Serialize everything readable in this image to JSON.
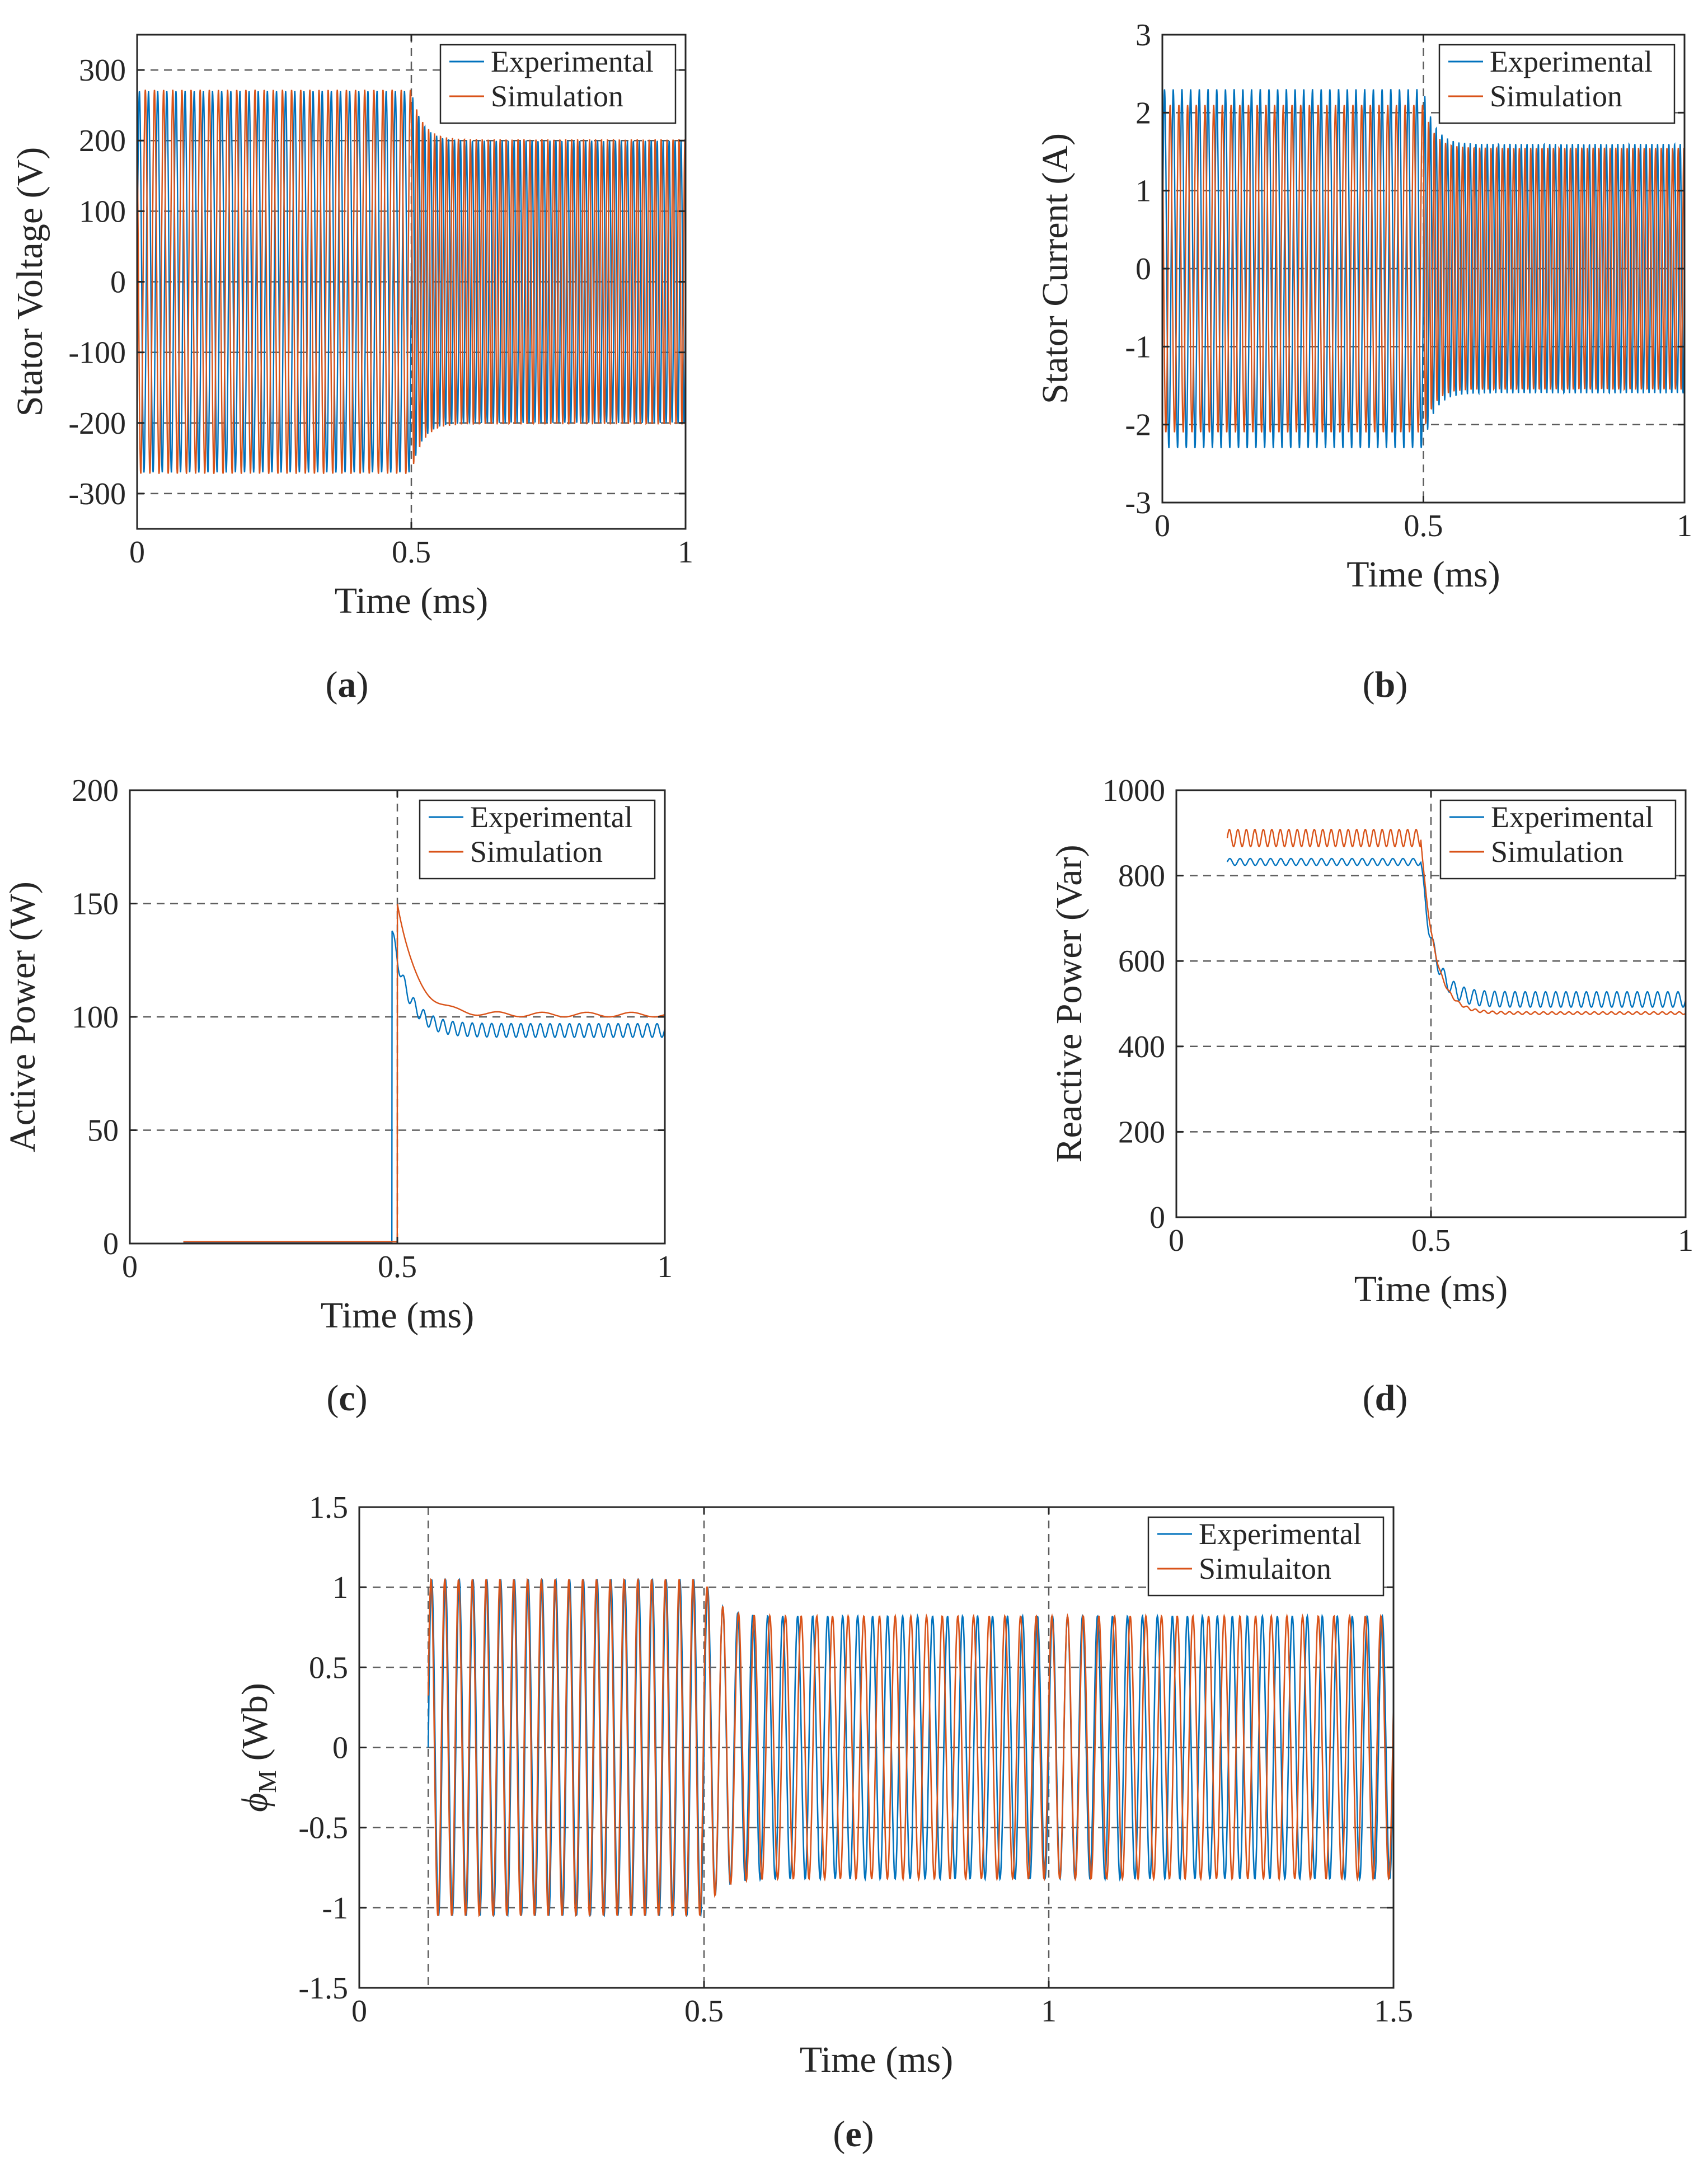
{
  "colors": {
    "experimental": "#0072BD",
    "simulation": "#D95319",
    "axis": "#262626"
  },
  "chart_data": [
    {
      "type": "line",
      "caption": "a",
      "xlabel": "Time (ms)",
      "ylabel": "Stator Voltage (V)",
      "xlim": [
        0,
        1
      ],
      "ylim": [
        -350,
        350
      ],
      "xticks": [
        0,
        0.5,
        1
      ],
      "xticklabels": [
        "0",
        "0.5",
        "1"
      ],
      "yticks": [
        -300,
        -200,
        -100,
        0,
        100,
        200,
        300
      ],
      "yticklabels": [
        "-300",
        "-200",
        "-100",
        "0",
        "100",
        "200",
        "300"
      ],
      "grid_y": [
        -300,
        -200,
        -100,
        0,
        100,
        200,
        300
      ],
      "grid_x": [
        0.5
      ],
      "legend": {
        "position": "top-right",
        "labels": [
          "Experimental",
          "Simulation"
        ]
      },
      "series": [
        {
          "name": "Experimental",
          "kind": "oscillation",
          "t_start": 0,
          "t_end": 1,
          "t_step": 0.5,
          "amp_before": 270,
          "amp_after": 200,
          "cycles_before": 30,
          "cycles_after": 46,
          "phase": 0,
          "tau": 0.02
        },
        {
          "name": "Simulation",
          "kind": "oscillation",
          "t_start": 0,
          "t_end": 1,
          "t_step": 0.5,
          "amp_before": 272,
          "amp_after": 202,
          "cycles_before": 30,
          "cycles_after": 46,
          "phase": 0.35,
          "tau": 0.02
        }
      ]
    },
    {
      "type": "line",
      "caption": "b",
      "xlabel": "Time (ms)",
      "ylabel": "Stator Current (A)",
      "xlim": [
        0,
        1
      ],
      "ylim": [
        -3,
        3
      ],
      "xticks": [
        0,
        0.5,
        1
      ],
      "xticklabels": [
        "0",
        "0.5",
        "1"
      ],
      "yticks": [
        -3,
        -2,
        -1,
        0,
        1,
        2,
        3
      ],
      "yticklabels": [
        "-3",
        "-2",
        "-1",
        "0",
        "1",
        "2",
        "3"
      ],
      "grid_y": [
        -2,
        -1,
        0,
        1,
        2
      ],
      "grid_x": [
        0.5
      ],
      "legend": {
        "position": "top-right",
        "labels": [
          "Experimental",
          "Simulation"
        ]
      },
      "series": [
        {
          "name": "Experimental",
          "kind": "oscillation",
          "t_start": 0,
          "t_end": 1,
          "t_step": 0.5,
          "amp_before": 2.3,
          "amp_after": 1.6,
          "cycles_before": 30,
          "cycles_after": 46,
          "phase": 0,
          "tau": 0.02
        },
        {
          "name": "Simulation",
          "kind": "oscillation",
          "t_start": 0,
          "t_end": 1,
          "t_step": 0.5,
          "amp_before": 2.1,
          "amp_after": 1.55,
          "cycles_before": 30,
          "cycles_after": 46,
          "phase": 0.35,
          "tau": 0.02
        }
      ]
    },
    {
      "type": "line",
      "caption": "c",
      "xlabel": "Time (ms)",
      "ylabel": "Active Power (W)",
      "xlim": [
        0,
        1
      ],
      "ylim": [
        0,
        200
      ],
      "xticks": [
        0,
        0.5,
        1
      ],
      "xticklabels": [
        "0",
        "0.5",
        "1"
      ],
      "yticks": [
        0,
        50,
        100,
        150,
        200
      ],
      "yticklabels": [
        "0",
        "50",
        "100",
        "150",
        "200"
      ],
      "grid_y": [
        50,
        100,
        150
      ],
      "grid_x": [
        0.5
      ],
      "legend": {
        "position": "top-right",
        "labels": [
          "Experimental",
          "Simulation"
        ]
      },
      "series": [
        {
          "name": "Experimental",
          "kind": "step",
          "t_start": 0.1,
          "t_end": 1,
          "t_step": 0.49,
          "level_before": 0.5,
          "peak": 138,
          "level_after": 94,
          "tau": 0.03,
          "ripple_before": 0,
          "ripple_after": 3,
          "ripple_cycles": 55
        },
        {
          "name": "Simulation",
          "kind": "step",
          "t_start": 0.1,
          "t_end": 1,
          "t_step": 0.5,
          "level_before": 0.8,
          "peak": 150,
          "level_after": 101,
          "tau": 0.035,
          "ripple_before": 0,
          "ripple_after": 1,
          "ripple_cycles": 12
        }
      ]
    },
    {
      "type": "line",
      "caption": "d",
      "xlabel": "Time (ms)",
      "ylabel": "Reactive Power (Var)",
      "xlim": [
        0,
        1
      ],
      "ylim": [
        0,
        1000
      ],
      "xticks": [
        0,
        0.5,
        1
      ],
      "xticklabels": [
        "0",
        "0.5",
        "1"
      ],
      "yticks": [
        0,
        200,
        400,
        600,
        800,
        1000
      ],
      "yticklabels": [
        "0",
        "200",
        "400",
        "600",
        "800",
        "1000"
      ],
      "grid_y": [
        200,
        400,
        600,
        800
      ],
      "grid_x": [
        0.5
      ],
      "legend": {
        "position": "top-right",
        "labels": [
          "Experimental",
          "Simulation"
        ]
      },
      "series": [
        {
          "name": "Experimental",
          "kind": "drop",
          "t_start": 0.1,
          "t_end": 1,
          "t_drop": 0.48,
          "level_before": 832,
          "level_after": 510,
          "undershoot": 0,
          "tau": 0.025,
          "ripple_before": 8,
          "ripple_after": 18,
          "ripple_cycles": 50
        },
        {
          "name": "Simulation",
          "kind": "drop",
          "t_start": 0.1,
          "t_end": 1,
          "t_drop": 0.48,
          "level_before": 888,
          "level_after": 478,
          "undershoot": 18,
          "tau": 0.03,
          "ripple_before": 20,
          "ripple_after": 3,
          "ripple_cycles": 60
        }
      ]
    },
    {
      "type": "line",
      "caption": "e",
      "xlabel": "Time (ms)",
      "ylabel": "ϕ",
      "ylabel_sub": "M",
      "ylabel_unit": "(Wb)",
      "xlim": [
        0,
        1.5
      ],
      "ylim": [
        -1.5,
        1.5
      ],
      "xticks": [
        0,
        0.5,
        1,
        1.5
      ],
      "xticklabels": [
        "0",
        "0.5",
        "1",
        "1.5"
      ],
      "yticks": [
        -1.5,
        -1,
        -0.5,
        0,
        0.5,
        1,
        1.5
      ],
      "yticklabels": [
        "-1.5",
        "-1",
        "-0.5",
        "0",
        "0.5",
        "1",
        "1.5"
      ],
      "grid_y": [
        -1,
        -0.5,
        0,
        0.5,
        1
      ],
      "grid_x": [
        0.1,
        0.5,
        1
      ],
      "legend": {
        "position": "top-right",
        "labels": [
          "Experimental",
          "Simulaiton"
        ]
      },
      "series": [
        {
          "name": "Experimental",
          "kind": "oscillation",
          "t_start": 0.1,
          "t_end": 1.5,
          "t_step": 0.5,
          "amp_before": 1.05,
          "amp_after": 0.82,
          "cycles_before": 20,
          "cycles_after": 46,
          "phase": 0,
          "tau": 0.02
        },
        {
          "name": "Simulaiton",
          "kind": "oscillation",
          "t_start": 0.1,
          "t_end": 1.5,
          "t_step": 0.5,
          "amp_before": 1.05,
          "amp_after": 0.82,
          "cycles_before": 20,
          "cycles_after": 44,
          "phase": 0.05,
          "tau": 0.02
        }
      ]
    }
  ]
}
